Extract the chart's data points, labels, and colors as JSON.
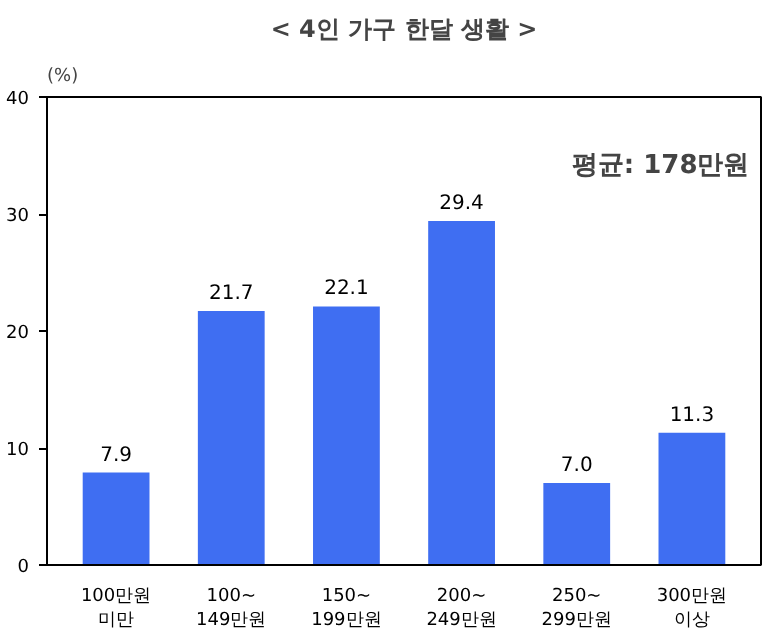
{
  "chart_data": {
    "type": "bar",
    "title": "< 4인 가구 한달 생활 >",
    "ylabel": "(%)",
    "categories": [
      "100만원\n미만",
      "100~\n149만원",
      "150~\n199만원",
      "200~\n249만원",
      "250~\n299만원",
      "300만원\n이상"
    ],
    "values": [
      7.9,
      21.7,
      22.1,
      29.4,
      7.0,
      11.3
    ],
    "color": "#3f6ef2",
    "value_labels": [
      "7.9",
      "21.7",
      "22.1",
      "29.4",
      "7.0",
      "11.3"
    ],
    "ylim": [
      0,
      40
    ],
    "yticks": [
      0,
      10,
      20,
      30,
      40
    ],
    "grid": false,
    "annotations": [
      "평균: 178만원"
    ]
  }
}
